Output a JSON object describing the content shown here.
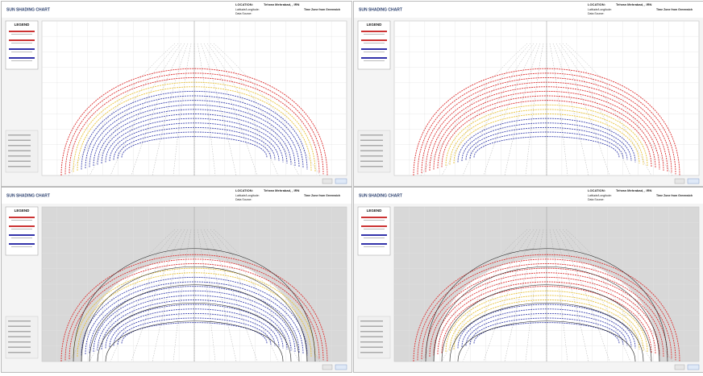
{
  "panels": [
    {
      "title": "SUN SHADING CHART",
      "location_label": "LOCATION:",
      "location": "Tehran Mehrabad, , IRN",
      "latlon_label": "Latitude/Longitude:",
      "timezone": "Time Zone from Greenwich",
      "source_label": "Data Source:",
      "legend_title": "LEGEND"
    },
    {
      "title": "SUN SHADING CHART",
      "location_label": "LOCATION:",
      "location": "Tehran Mehrabad, , IRN",
      "latlon_label": "Latitude/Longitude:",
      "timezone": "Time Zone from Greenwich",
      "source_label": "Data Source:",
      "legend_title": "LEGEND"
    },
    {
      "title": "SUN SHADING CHART",
      "location_label": "LOCATION:",
      "location": "Tehran Mehrabad, , IRN",
      "latlon_label": "Latitude/Longitude:",
      "timezone": "Time Zone from Greenwich",
      "source_label": "Data Source:",
      "legend_title": "LEGEND"
    },
    {
      "title": "SUN SHADING CHART",
      "location_label": "LOCATION:",
      "location": "Tehran Mehrabad, , IRN",
      "latlon_label": "Latitude/Longitude:",
      "timezone": "Time Zone from Greenwich",
      "source_label": "Data Source:",
      "legend_title": "LEGEND"
    }
  ]
}
